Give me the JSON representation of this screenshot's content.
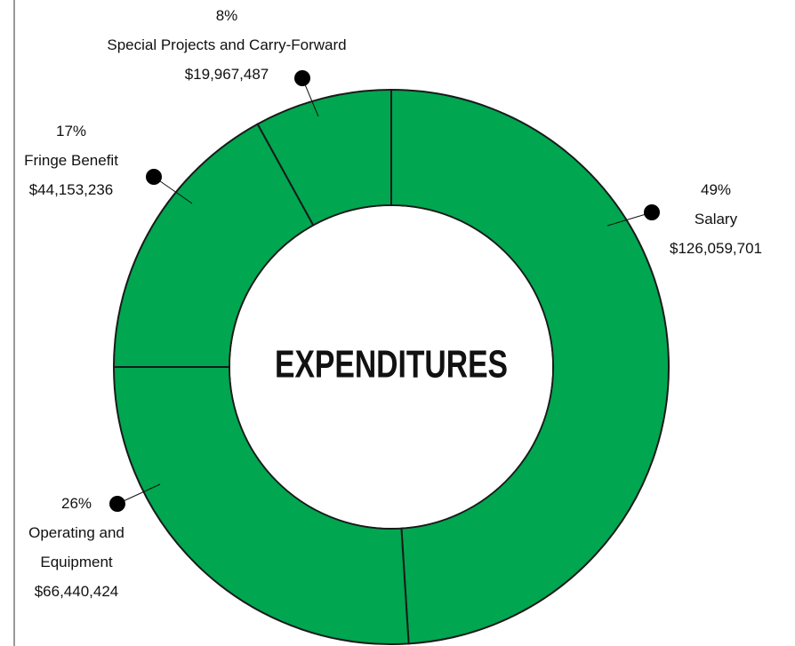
{
  "chart_data": {
    "type": "donut",
    "title": "EXPENDITURES",
    "categories": [
      "Salary",
      "Operating and Equipment",
      "Fringe Benefit",
      "Special Projects and Carry-Forward"
    ],
    "values": [
      49,
      26,
      17,
      8
    ],
    "value_labels": [
      "49%",
      "26%",
      "17%",
      "8%"
    ],
    "amounts": [
      "$126,059,701",
      "$66,440,424",
      "$44,153,236",
      "$19,967,487"
    ],
    "color": "#00a650"
  }
}
